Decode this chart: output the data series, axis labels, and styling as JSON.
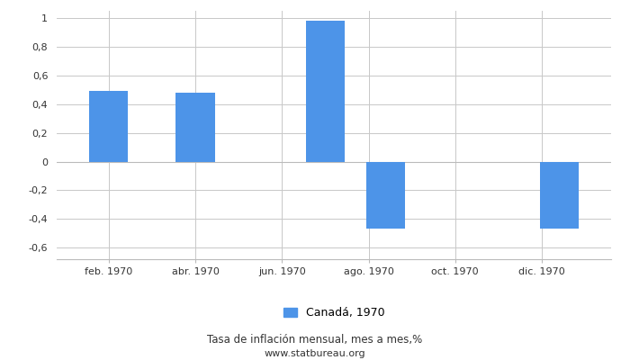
{
  "x_labels": [
    "feb. 1970",
    "abr. 1970",
    "jun. 1970",
    "ago. 1970",
    "oct. 1970",
    "dic. 1970"
  ],
  "values": [
    0.49,
    0.48,
    0.0,
    0.98,
    -0.47,
    0.0,
    -0.47
  ],
  "bar_positions": [
    0,
    1,
    2,
    3,
    4,
    5,
    6
  ],
  "bar_color": "#4d94e8",
  "ylim": [
    -0.68,
    1.05
  ],
  "yticks": [
    -0.6,
    -0.4,
    -0.2,
    0.0,
    0.2,
    0.4,
    0.6,
    0.8,
    1.0
  ],
  "ytick_labels": [
    "-0,6",
    "-0,4",
    "-0,2",
    "0",
    "0,2",
    "0,4",
    "0,6",
    "0,8",
    "1"
  ],
  "legend_label": "Canadá, 1970",
  "title": "Tasa de inflación mensual, mes a mes,%",
  "subtitle": "www.statbureau.org",
  "background_color": "#ffffff",
  "grid_color": "#c8c8c8"
}
